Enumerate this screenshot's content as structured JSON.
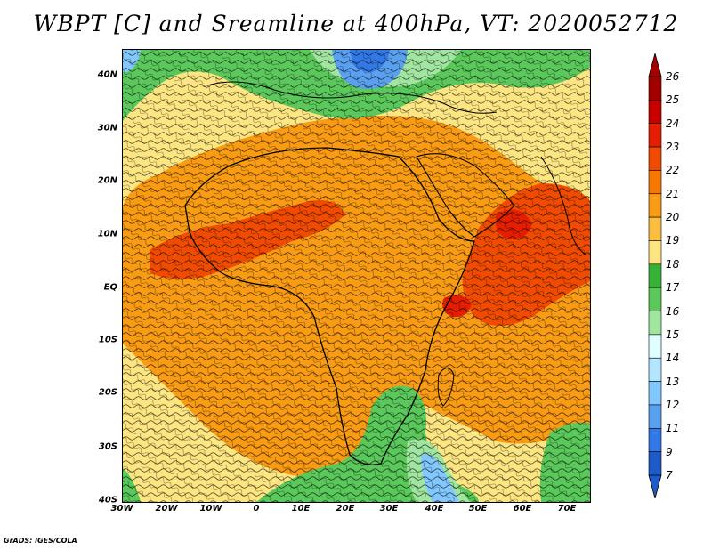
{
  "title": "WBPT [C] and Sreamline at 400hPa, VT: 2020052712",
  "credit": "GrADS: IGES/COLA",
  "lat_labels": [
    "40N",
    "30N",
    "20N",
    "10N",
    "EQ",
    "10S",
    "20S",
    "30S",
    "40S"
  ],
  "lon_labels": [
    "30W",
    "20W",
    "10W",
    "0",
    "10E",
    "20E",
    "30E",
    "40E",
    "50E",
    "60E",
    "70E"
  ],
  "colorbar": {
    "labels": [
      "26",
      "25",
      "24",
      "23",
      "22",
      "21",
      "20",
      "19",
      "18",
      "17",
      "16",
      "15",
      "14",
      "13",
      "12",
      "11",
      "9",
      "7"
    ],
    "colors": [
      "#a50000",
      "#c80000",
      "#e61e00",
      "#f04b00",
      "#f77800",
      "#fa9b14",
      "#fcbe41",
      "#fde682",
      "#36b336",
      "#5ac85a",
      "#a0e6a0",
      "#e1ffff",
      "#b4e6ff",
      "#82c8ff",
      "#5aa0f0",
      "#3278e6",
      "#1e5ac8"
    ]
  },
  "layers": {
    "shading": "WBPT [C]",
    "vectors": "Sreamline"
  }
}
